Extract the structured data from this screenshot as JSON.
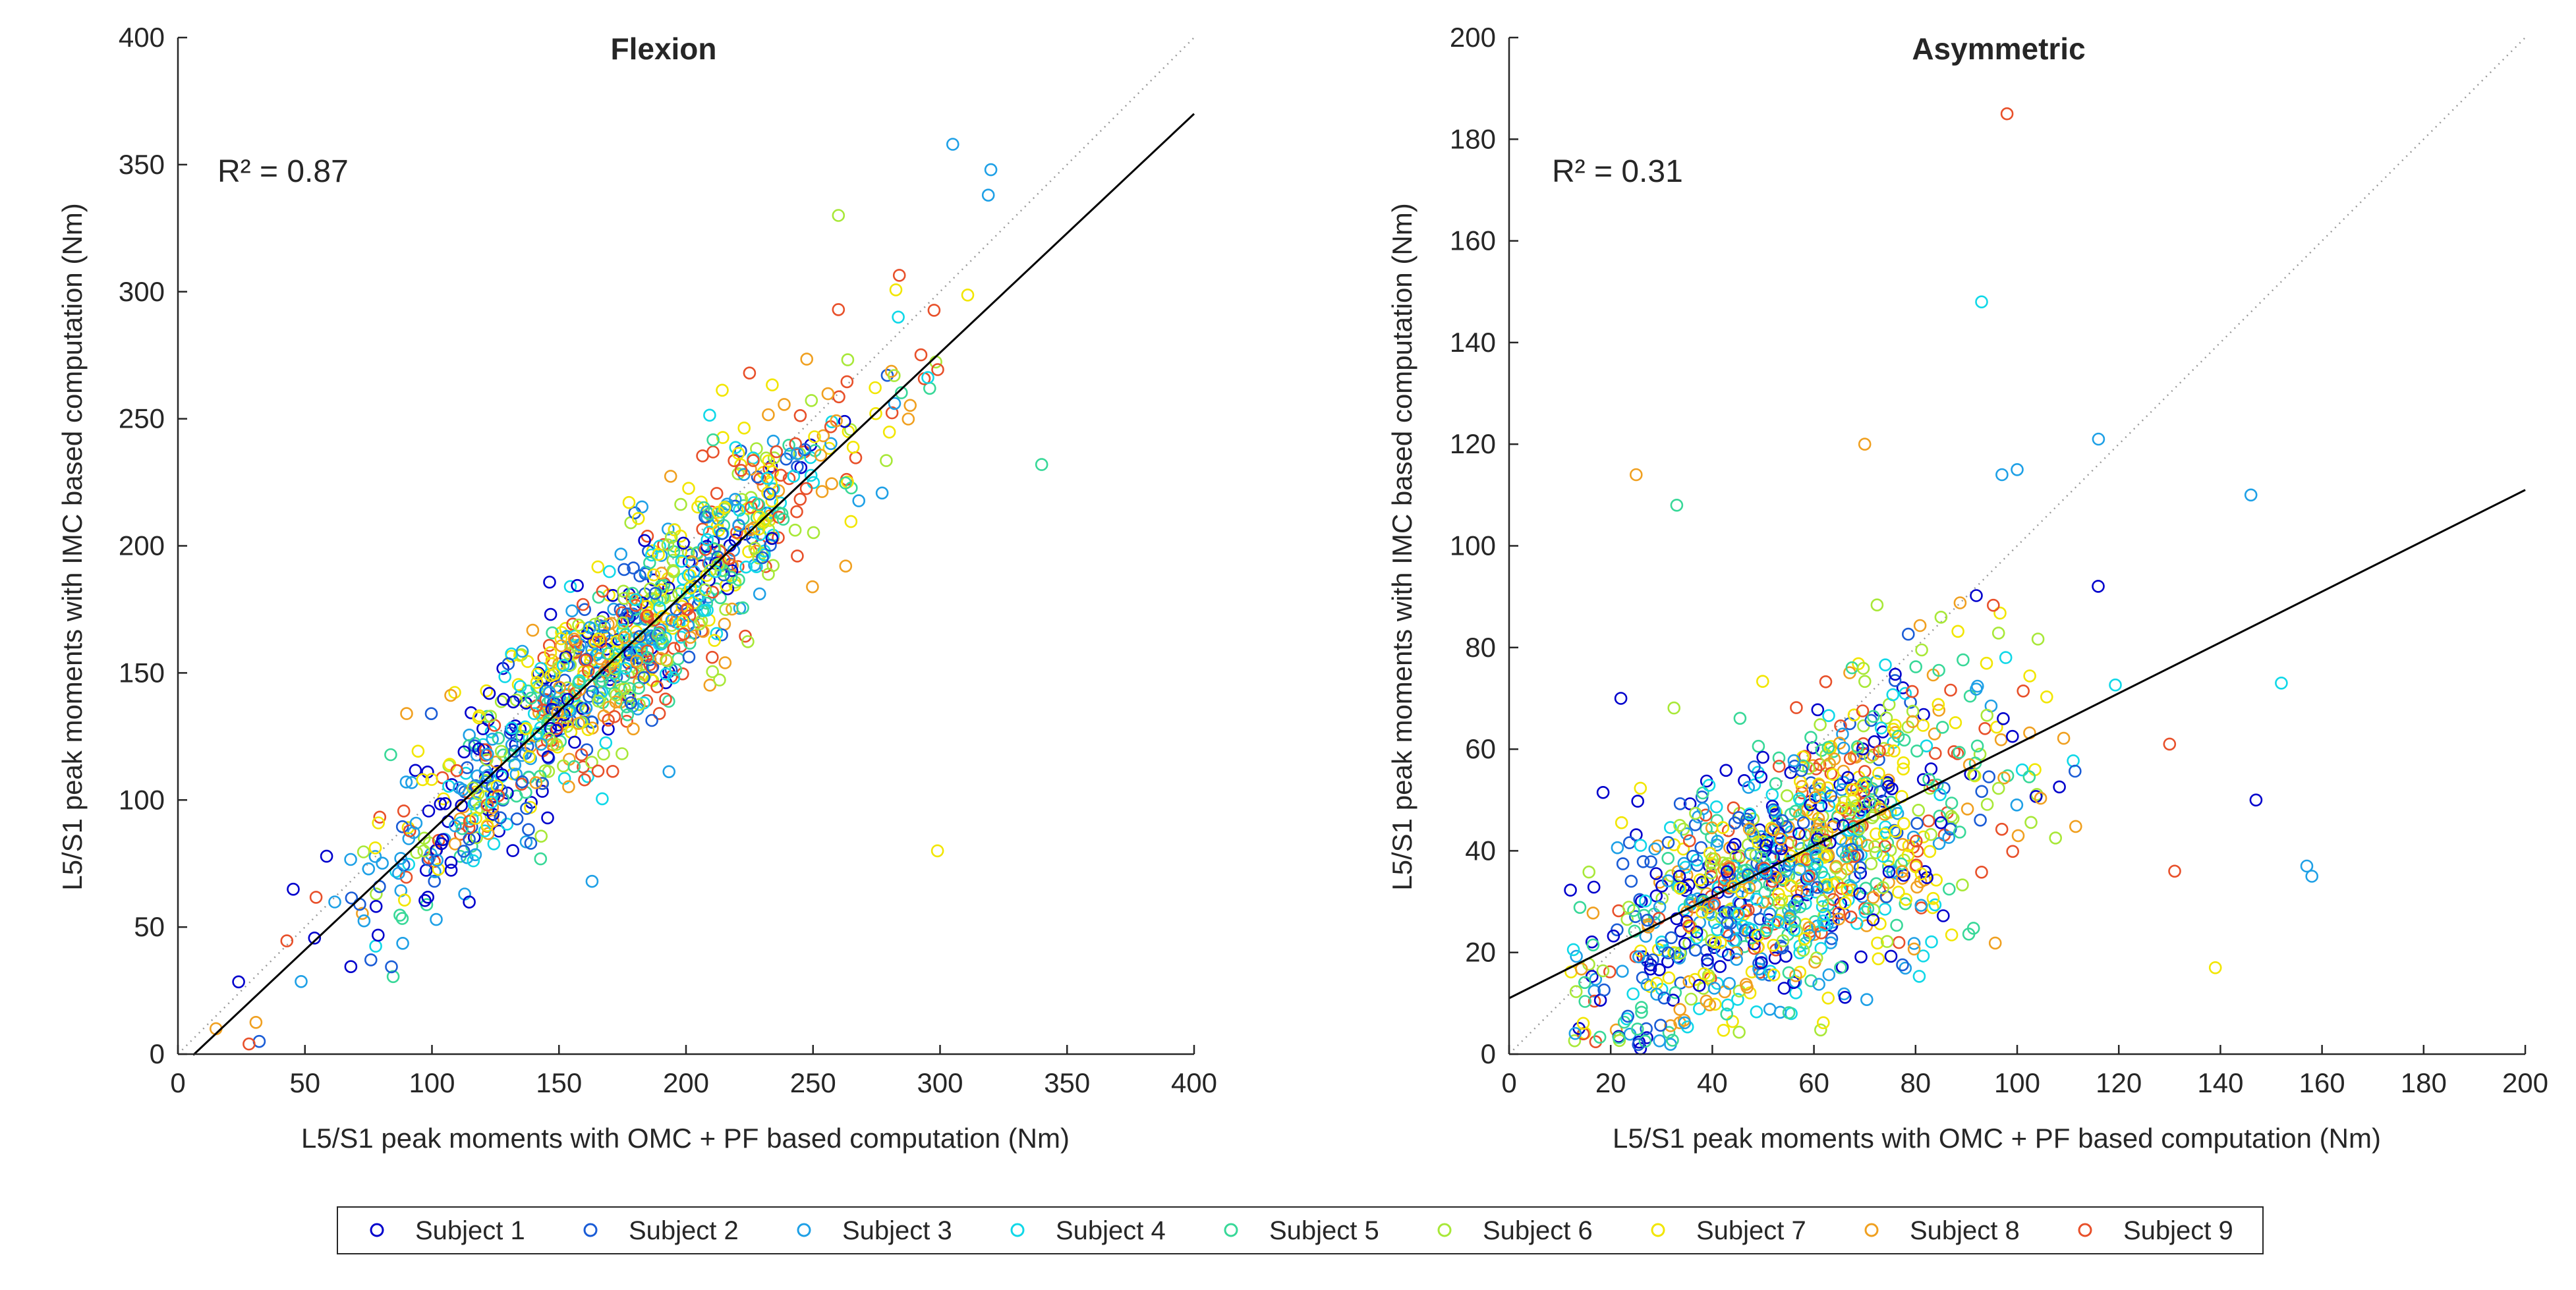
{
  "chart_data": [
    {
      "type": "scatter",
      "title": "Flexion",
      "xlabel": "L5/S1 peak moments with OMC + PF based computation (Nm)",
      "ylabel": "L5/S1 peak moments with IMC based computation (Nm)",
      "xlim": [
        0,
        400
      ],
      "ylim": [
        0,
        400
      ],
      "xticks": [
        0,
        50,
        100,
        150,
        200,
        250,
        300,
        350,
        400
      ],
      "yticks": [
        0,
        50,
        100,
        150,
        200,
        250,
        300,
        350,
        400
      ],
      "annotation": "R² = 0.87",
      "fit_line": {
        "slope": 0.94,
        "intercept": -6,
        "x_range": [
          6,
          400
        ]
      },
      "identity_line": {
        "x_range": [
          0,
          400
        ],
        "style": "dotted"
      },
      "cloud": {
        "center": [
          172,
          152
        ],
        "spread": [
          48,
          48
        ],
        "noise": 20,
        "clip": [
          20,
          340
        ]
      },
      "notable_points": [
        {
          "x": 305,
          "y": 358,
          "series": 3
        },
        {
          "x": 320,
          "y": 348,
          "series": 3
        },
        {
          "x": 319,
          "y": 338,
          "series": 3
        },
        {
          "x": 260,
          "y": 330,
          "series": 6
        },
        {
          "x": 340,
          "y": 232,
          "series": 5
        },
        {
          "x": 299,
          "y": 80,
          "series": 7
        },
        {
          "x": 225,
          "y": 268,
          "series": 9
        },
        {
          "x": 90,
          "y": 134,
          "series": 8
        },
        {
          "x": 163,
          "y": 68,
          "series": 3
        },
        {
          "x": 32,
          "y": 5,
          "series": 2
        },
        {
          "x": 28,
          "y": 4,
          "series": 9
        },
        {
          "x": 15,
          "y": 10,
          "series": 8
        }
      ]
    },
    {
      "type": "scatter",
      "title": "Asymmetric",
      "xlabel": "L5/S1 peak moments with OMC + PF based computation (Nm)",
      "ylabel": "L5/S1 peak moments with IMC based computation (Nm)",
      "xlim": [
        0,
        200
      ],
      "ylim": [
        0,
        200
      ],
      "xticks": [
        0,
        20,
        40,
        60,
        80,
        100,
        120,
        140,
        160,
        180,
        200
      ],
      "yticks": [
        0,
        20,
        40,
        60,
        80,
        100,
        120,
        140,
        160,
        180,
        200
      ],
      "annotation": "R² = 0.31",
      "fit_line": {
        "slope": 0.5,
        "intercept": 11,
        "x_range": [
          0,
          200
        ]
      },
      "identity_line": {
        "x_range": [
          0,
          200
        ],
        "style": "dotted"
      },
      "cloud": {
        "center": [
          55,
          38
        ],
        "spread": [
          22,
          12
        ],
        "noise": 13,
        "clip": [
          12,
          160
        ]
      },
      "notable_points": [
        {
          "x": 98,
          "y": 185,
          "series": 9
        },
        {
          "x": 93,
          "y": 148,
          "series": 4
        },
        {
          "x": 116,
          "y": 121,
          "series": 3
        },
        {
          "x": 100,
          "y": 115,
          "series": 3
        },
        {
          "x": 97,
          "y": 114,
          "series": 3
        },
        {
          "x": 25,
          "y": 114,
          "series": 8
        },
        {
          "x": 146,
          "y": 110,
          "series": 3
        },
        {
          "x": 70,
          "y": 120,
          "series": 8
        },
        {
          "x": 33,
          "y": 108,
          "series": 5
        },
        {
          "x": 22,
          "y": 70,
          "series": 1
        },
        {
          "x": 152,
          "y": 73,
          "series": 4
        },
        {
          "x": 157,
          "y": 37,
          "series": 3
        },
        {
          "x": 158,
          "y": 35,
          "series": 3
        },
        {
          "x": 147,
          "y": 50,
          "series": 1
        },
        {
          "x": 130,
          "y": 61,
          "series": 9
        },
        {
          "x": 131,
          "y": 36,
          "series": 9
        },
        {
          "x": 139,
          "y": 17,
          "series": 7
        },
        {
          "x": 27,
          "y": 5,
          "series": 2
        }
      ]
    }
  ],
  "legend": {
    "placement": "bottom-center",
    "entries": [
      {
        "label": "Subject 1",
        "color": "#0000cc"
      },
      {
        "label": "Subject 2",
        "color": "#1a5cd6"
      },
      {
        "label": "Subject 3",
        "color": "#1ea0e6"
      },
      {
        "label": "Subject 4",
        "color": "#10d8e8"
      },
      {
        "label": "Subject 5",
        "color": "#38d898"
      },
      {
        "label": "Subject 6",
        "color": "#a8e838"
      },
      {
        "label": "Subject 7",
        "color": "#f2e600"
      },
      {
        "label": "Subject 8",
        "color": "#f0a020"
      },
      {
        "label": "Subject 9",
        "color": "#e8502a"
      }
    ]
  }
}
